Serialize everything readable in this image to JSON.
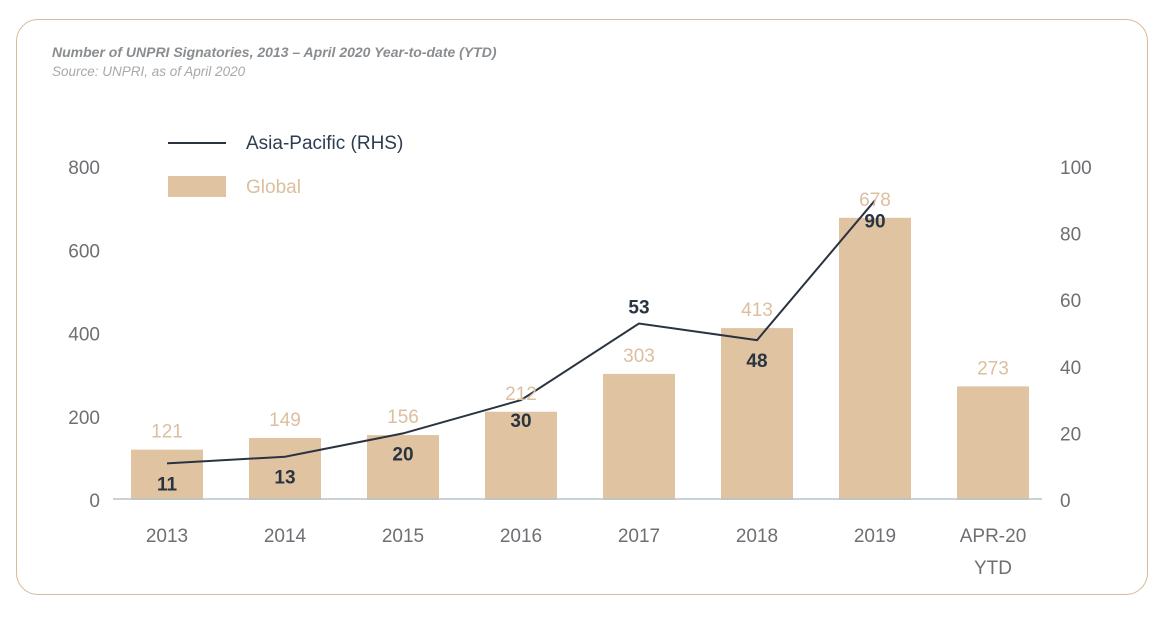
{
  "title": "Number of UNPRI Signatories, 2013 – April 2020 Year-to-date (YTD)",
  "subtitle": "Source: UNPRI, as of April 2020",
  "chart_data": {
    "type": "bar",
    "categories": [
      [
        "2013"
      ],
      [
        "2014"
      ],
      [
        "2015"
      ],
      [
        "2016"
      ],
      [
        "2017"
      ],
      [
        "2018"
      ],
      [
        "2019"
      ],
      [
        "APR-20",
        "YTD"
      ]
    ],
    "series": [
      {
        "name": "Global",
        "type": "bar",
        "axis": "left",
        "color": "#e0c4a2",
        "values": [
          121,
          149,
          156,
          212,
          303,
          413,
          678,
          273
        ]
      },
      {
        "name": "Asia-Pacific (RHS)",
        "type": "line",
        "axis": "right",
        "color": "#2a3340",
        "values": [
          11,
          13,
          20,
          30,
          53,
          48,
          90,
          null
        ]
      }
    ],
    "y_left": {
      "min": 0,
      "max": 800,
      "ticks": [
        0,
        200,
        400,
        600,
        800
      ]
    },
    "y_right": {
      "min": 0,
      "max": 100,
      "ticks": [
        0,
        20,
        40,
        60,
        80,
        100
      ]
    },
    "legend": {
      "placement": "top-left",
      "entries": [
        "Asia-Pacific (RHS)",
        "Global"
      ]
    },
    "grid": false
  }
}
